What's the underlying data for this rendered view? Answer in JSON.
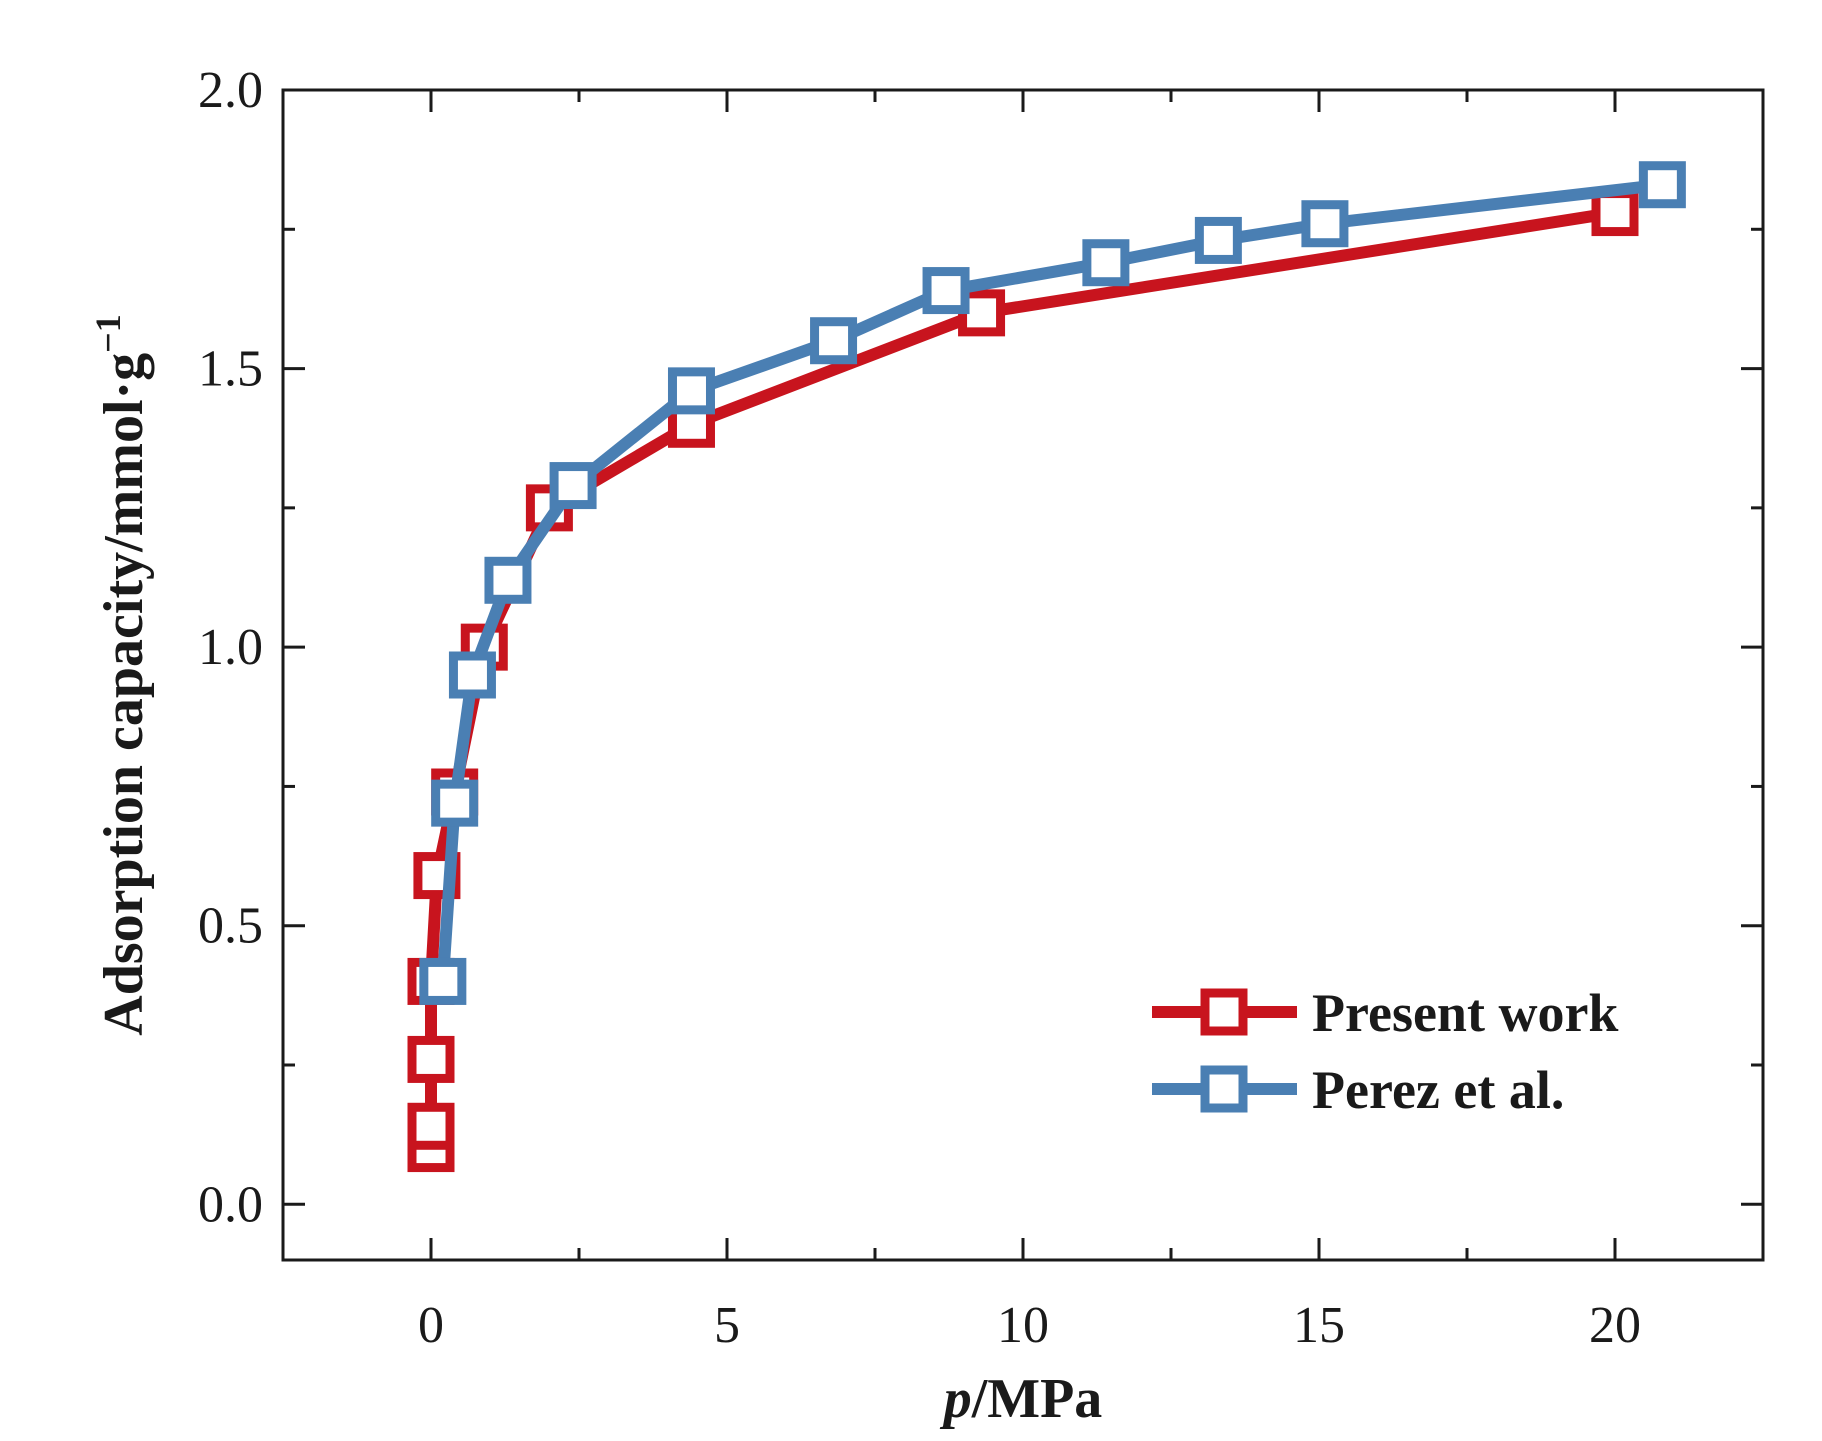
{
  "chart_data": {
    "type": "line",
    "xlabel_italic": "p",
    "xlabel_rest": "/MPa",
    "ylabel": "Adsorption capacity/mmol·g",
    "ylabel_sup": "−1",
    "xlim": [
      -2.5,
      22.5
    ],
    "ylim": [
      -0.1,
      2.0
    ],
    "x_ticks": [
      0,
      5,
      10,
      15,
      20
    ],
    "x_tick_labels": [
      "0",
      "5",
      "10",
      "15",
      "20"
    ],
    "y_ticks": [
      0.0,
      0.5,
      1.0,
      1.5,
      2.0
    ],
    "y_tick_labels": [
      "0.0",
      "0.5",
      "1.0",
      "1.5",
      "2.0"
    ],
    "legend_position": "bottom-right",
    "series": [
      {
        "name": "Present work",
        "color": "#c8141e",
        "x": [
          0.0,
          0.0,
          0.0,
          0.0,
          0.1,
          0.4,
          0.9,
          2.0,
          4.4,
          9.3,
          20.0
        ],
        "y": [
          0.1,
          0.14,
          0.26,
          0.4,
          0.59,
          0.74,
          1.0,
          1.25,
          1.4,
          1.6,
          1.78
        ]
      },
      {
        "name": "Perez et al.",
        "color": "#4a7fb3",
        "x": [
          0.2,
          0.4,
          0.7,
          1.3,
          2.4,
          4.4,
          6.8,
          8.7,
          11.4,
          13.3,
          15.1,
          20.8
        ],
        "y": [
          0.4,
          0.72,
          0.95,
          1.12,
          1.29,
          1.46,
          1.55,
          1.64,
          1.69,
          1.73,
          1.76,
          1.83
        ]
      }
    ]
  }
}
